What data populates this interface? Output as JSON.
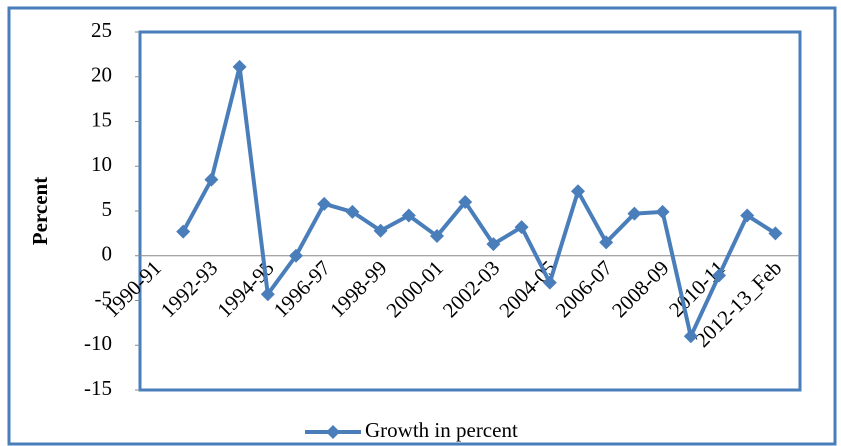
{
  "chart_data": {
    "type": "line",
    "y_label": "Percent",
    "categories": [
      "1990-91",
      null,
      "1992-93",
      null,
      "1994-95",
      null,
      "1996-97",
      null,
      "1998-99",
      null,
      "2000-01",
      null,
      "2002-03",
      null,
      "2004-05",
      null,
      "2006-07",
      null,
      "2008-09",
      null,
      "2010-11",
      null,
      "2012-13_Feb"
    ],
    "series": [
      {
        "name": "Growth in percent",
        "color": "#4a7ebb",
        "values": [
          null,
          2.7,
          8.5,
          21.1,
          -4.3,
          0.0,
          5.8,
          4.9,
          2.8,
          4.5,
          2.2,
          6.0,
          1.3,
          3.2,
          -3.0,
          7.2,
          1.5,
          4.7,
          4.9,
          -9.0,
          -2.2,
          4.5,
          2.5
        ]
      }
    ],
    "ylim": [
      -15,
      25
    ],
    "yticks": [
      -15,
      -10,
      -5,
      0,
      5,
      10,
      15,
      20,
      25
    ],
    "legend": "bottom"
  }
}
